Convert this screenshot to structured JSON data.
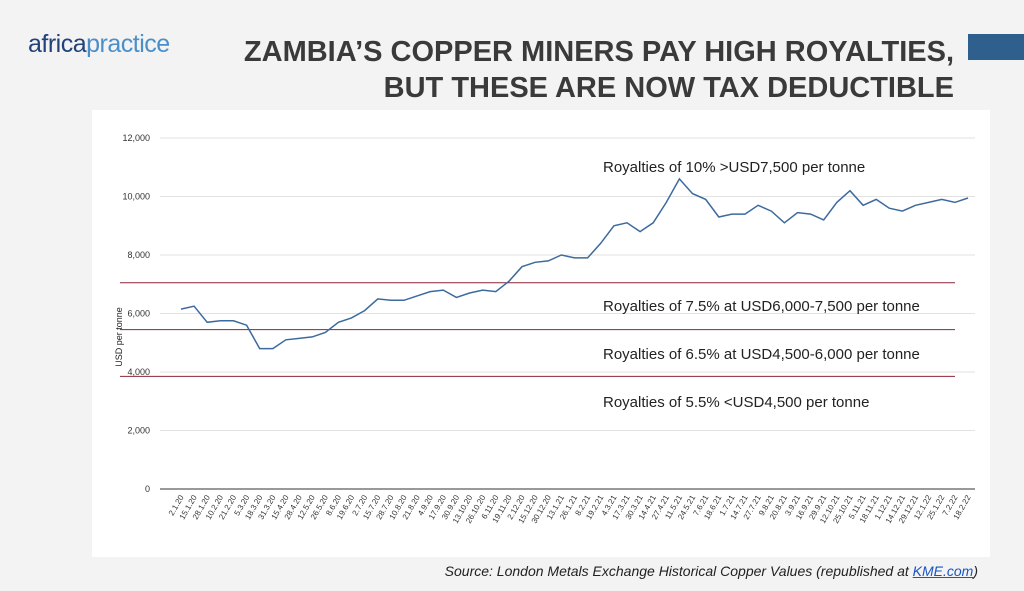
{
  "header": {
    "logo": [
      "africa",
      "practice"
    ],
    "title": [
      "ZAMBIA’S COPPER MINERS PAY HIGH ROYALTIES,",
      "BUT THESE ARE NOW TAX DEDUCTIBLE"
    ]
  },
  "chart_data": {
    "type": "line",
    "ylabel": "USD per tonne",
    "categories": [
      "2.1.20",
      "15.1.20",
      "28.1.20",
      "10.2.20",
      "21.2.20",
      "5.3.20",
      "18.3.20",
      "31.3.20",
      "15.4.20",
      "28.4.20",
      "12.5.20",
      "26.5.20",
      "8.6.20",
      "19.6.20",
      "2.7.20",
      "15.7.20",
      "28.7.20",
      "10.8.20",
      "21.8.20",
      "4.9.20",
      "17.9.20",
      "30.9.20",
      "13.10.20",
      "26.10.20",
      "6.11.20",
      "19.11.20",
      "2.12.20",
      "15.12.20",
      "30.12.20",
      "13.1.21",
      "26.1.21",
      "8.2.21",
      "19.2.21",
      "4.3.21",
      "17.3.21",
      "30.3.21",
      "14.4.21",
      "27.4.21",
      "11.5.21",
      "24.5.21",
      "7.6.21",
      "18.6.21",
      "1.7.21",
      "14.7.21",
      "27.7.21",
      "9.8.21",
      "20.8.21",
      "3.9.21",
      "16.9.21",
      "29.9.21",
      "12.10.21",
      "25.10.21",
      "5.11.21",
      "18.11.21",
      "1.12.21",
      "14.12.21",
      "29.12.21",
      "12.1.22",
      "25.1.22",
      "7.2.22",
      "18.2.22"
    ],
    "values": [
      6150,
      6250,
      5700,
      5750,
      5750,
      5600,
      4800,
      4800,
      5100,
      5150,
      5200,
      5350,
      5700,
      5850,
      6100,
      6500,
      6450,
      6450,
      6600,
      6750,
      6800,
      6550,
      6700,
      6800,
      6750,
      7100,
      7600,
      7750,
      7800,
      8000,
      7900,
      7900,
      8400,
      9000,
      9100,
      8800,
      9100,
      9800,
      10600,
      10100,
      9900,
      9300,
      9400,
      9400,
      9700,
      9500,
      9100,
      9450,
      9400,
      9200,
      9800,
      10200,
      9700,
      9900,
      9600,
      9500,
      9700,
      9800,
      9900,
      9800,
      9950
    ],
    "color": "#3d6a9e",
    "ylim": [
      0,
      12000
    ],
    "yticks": [
      0,
      {
        "value": 2000,
        "label": "2,000"
      },
      {
        "value": 4000,
        "label": "4,000"
      },
      {
        "value": 6000,
        "label": "6,000"
      },
      {
        "value": 8000,
        "label": "8,000"
      },
      {
        "value": 10000,
        "label": "10,000"
      },
      {
        "value": 12000,
        "label": "12,000"
      }
    ],
    "grid": true,
    "reference_lines": [
      7050,
      5450,
      3850
    ],
    "reference_color": "#8b2436",
    "annotations": [
      "Royalties of 10% >USD7,500 per tonne",
      "Royalties of 7.5% at USD6,000-7,500 per tonne",
      "Royalties of 6.5% at USD4,500-6,000 per tonne",
      "Royalties of 5.5% <USD4,500 per tonne"
    ]
  },
  "footer": {
    "source": [
      "Source: London Metals Exchange Historical Copper Values (republished at ",
      "KME.com",
      ")"
    ]
  }
}
